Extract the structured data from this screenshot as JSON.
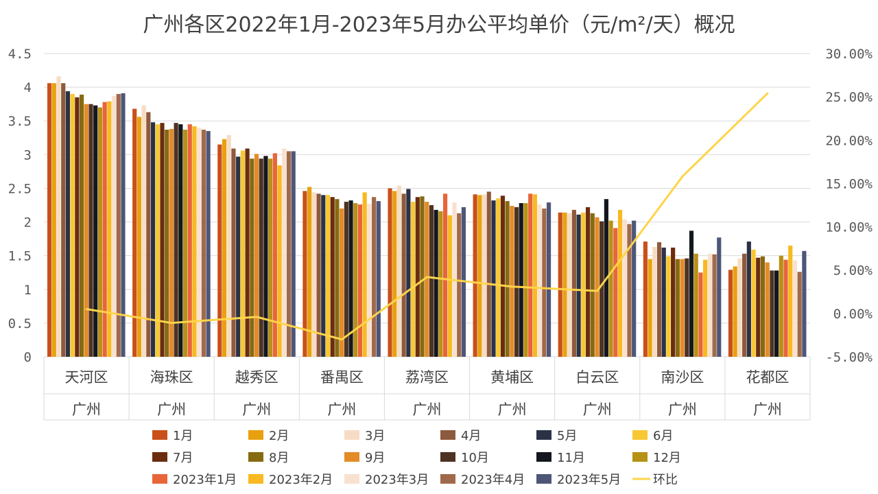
{
  "chart_data": {
    "type": "bar",
    "title": "广州各区2022年1月-2023年5月办公平均单价（元/m²/天）概况",
    "categories": [
      "天河区",
      "海珠区",
      "越秀区",
      "番禺区",
      "荔湾区",
      "黄埔区",
      "白云区",
      "南沙区",
      "花都区"
    ],
    "group_label": "广州",
    "y_ticks": [
      "0",
      "0.5",
      "1",
      "1.5",
      "2",
      "2.5",
      "3",
      "3.5",
      "4",
      "4.5"
    ],
    "y2_ticks": [
      "-5.00%",
      "0.00%",
      "5.00%",
      "10.00%",
      "15.00%",
      "20.00%",
      "25.00%",
      "30.00%"
    ],
    "ylim": [
      0,
      4.5
    ],
    "y2lim": [
      -5,
      30
    ],
    "grid": true,
    "legend_position": "bottom",
    "series": [
      {
        "name": "1月",
        "color": "#c9501a",
        "values": [
          4.06,
          3.68,
          3.15,
          2.46,
          2.5,
          2.41,
          2.14,
          1.71,
          1.29
        ]
      },
      {
        "name": "2月",
        "color": "#e8a10e",
        "values": [
          4.06,
          3.56,
          3.23,
          2.52,
          2.46,
          2.4,
          2.14,
          1.45,
          1.34
        ]
      },
      {
        "name": "3月",
        "color": "#f7dcc4",
        "values": [
          4.16,
          3.73,
          3.29,
          2.44,
          2.54,
          2.41,
          2.13,
          1.63,
          1.46
        ]
      },
      {
        "name": "4月",
        "color": "#8e5a3d",
        "values": [
          4.06,
          3.63,
          3.09,
          2.42,
          2.42,
          2.45,
          2.18,
          1.7,
          1.53
        ]
      },
      {
        "name": "5月",
        "color": "#2b3246",
        "values": [
          3.94,
          3.48,
          2.97,
          2.4,
          2.49,
          2.32,
          2.11,
          1.62,
          1.71
        ]
      },
      {
        "name": "6月",
        "color": "#f7c832",
        "values": [
          3.9,
          3.45,
          3.06,
          2.4,
          2.3,
          2.35,
          2.14,
          1.49,
          1.59
        ]
      },
      {
        "name": "7月",
        "color": "#6b2d0e",
        "values": [
          3.85,
          3.47,
          3.09,
          2.37,
          2.37,
          2.39,
          2.22,
          1.62,
          1.47
        ]
      },
      {
        "name": "8月",
        "color": "#866a12",
        "values": [
          3.89,
          3.37,
          2.94,
          2.34,
          2.38,
          2.31,
          2.13,
          1.45,
          1.49
        ]
      },
      {
        "name": "9月",
        "color": "#e48b28",
        "values": [
          3.75,
          3.38,
          3.01,
          2.2,
          2.3,
          2.24,
          2.07,
          1.45,
          1.4
        ]
      },
      {
        "name": "10月",
        "color": "#4d3321",
        "values": [
          3.75,
          3.47,
          2.94,
          2.3,
          2.25,
          2.22,
          2.01,
          1.46,
          1.28
        ]
      },
      {
        "name": "11月",
        "color": "#15171e",
        "values": [
          3.73,
          3.45,
          2.98,
          2.32,
          2.18,
          2.28,
          2.34,
          1.87,
          1.28
        ]
      },
      {
        "name": "12月",
        "color": "#b79016",
        "values": [
          3.7,
          3.37,
          2.94,
          2.28,
          2.16,
          2.28,
          2.02,
          1.53,
          1.5
        ]
      },
      {
        "name": "2023年1月",
        "color": "#e8653a",
        "values": [
          3.78,
          3.45,
          3.02,
          2.26,
          2.42,
          2.42,
          1.91,
          1.25,
          1.44
        ]
      },
      {
        "name": "2023年2月",
        "color": "#f8b921",
        "values": [
          3.79,
          3.42,
          2.84,
          2.44,
          2.1,
          2.41,
          2.18,
          1.44,
          1.65
        ]
      },
      {
        "name": "2023年3月",
        "color": "#f8e1d0",
        "values": [
          3.87,
          3.4,
          3.09,
          2.27,
          2.29,
          2.26,
          2.04,
          1.53,
          1.43
        ]
      },
      {
        "name": "2023年4月",
        "color": "#a06a4a",
        "values": [
          3.9,
          3.37,
          3.05,
          2.37,
          2.13,
          2.2,
          1.97,
          1.52,
          1.26
        ]
      },
      {
        "name": "2023年5月",
        "color": "#4e5678",
        "values": [
          3.91,
          3.35,
          3.05,
          2.31,
          2.22,
          2.29,
          2.02,
          1.77,
          1.57
        ]
      }
    ],
    "line_series": {
      "name": "环比",
      "color": "#ffd44a",
      "values": [
        0.5,
        -1.1,
        -0.4,
        -3.0,
        4.2,
        3.1,
        2.6,
        15.8,
        25.4
      ]
    }
  }
}
